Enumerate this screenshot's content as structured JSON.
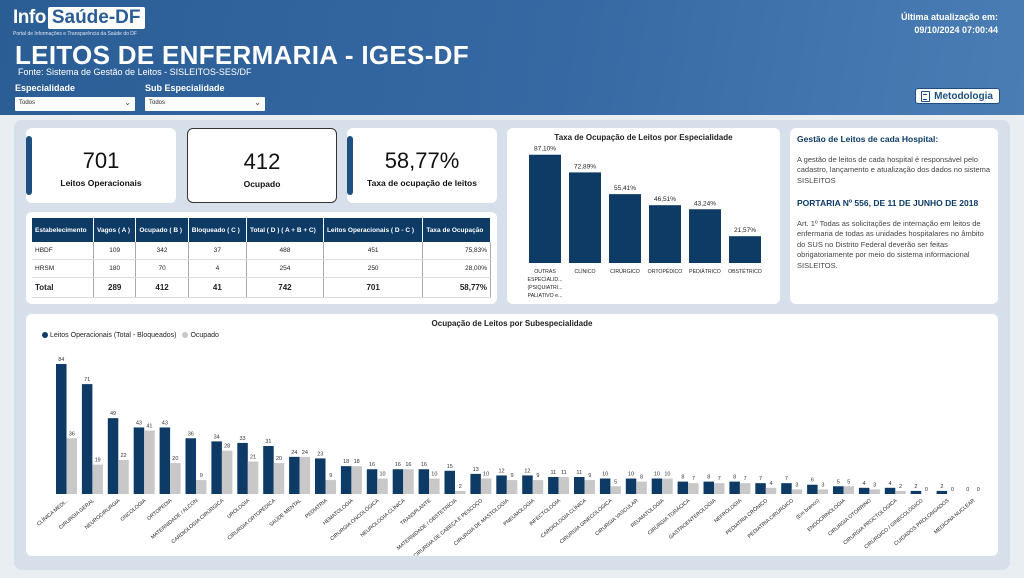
{
  "header": {
    "logo_info": "Info",
    "logo_saude": "Saúde-DF",
    "logo_sub": "Portal de Informações e Transparência da Saúde do DF",
    "title": "LEITOS DE ENFERMARIA - IGES-DF",
    "source": "Fonte: Sistema de Gestão de Leitos - SISLEITOS-SES/DF",
    "update_label": "Última atualização em:",
    "update_value": "09/10/2024 07:00:44",
    "metodologia": "Metodologia"
  },
  "filters": {
    "especialidade_label": "Especialidade",
    "especialidade_value": "Todos",
    "sub_label": "Sub Especialidade",
    "sub_value": "Todos"
  },
  "kpis": {
    "operacionais_value": "701",
    "operacionais_label": "Leitos Operacionais",
    "ocupado_value": "412",
    "ocupado_label": "Ocupado",
    "taxa_value": "58,77%",
    "taxa_label": "Taxa de ocupação de leitos"
  },
  "table": {
    "headers": [
      "Estabelecimento",
      "Vagos ( A )",
      "Ocupado ( B )",
      "Bloqueado ( C )",
      "Total ( D ) ( A + B + C)",
      "Leitos Operacionais ( D - C )",
      "Taxa de Ocupação"
    ],
    "rows": [
      [
        "HBDF",
        "109",
        "342",
        "37",
        "488",
        "451",
        "75,83%"
      ],
      [
        "HRSM",
        "180",
        "70",
        "4",
        "254",
        "250",
        "28,00%"
      ]
    ],
    "total": [
      "Total",
      "289",
      "412",
      "41",
      "742",
      "701",
      "58,77%"
    ]
  },
  "info": {
    "title": "Gestão de Leitos de cada Hospital:",
    "p1": "A gestão de leitos de cada hospital é responsável pelo cadastro, lançamento e atualização dos dados no sistema SISLEITOS",
    "portaria": "PORTARIA Nº 556, DE 11 DE JUNHO DE 2018",
    "p2": "Art. 1º Todas as solicitações de internação em leitos de enfermaria de todas as unidades hospitalares no âmbito do SUS no Distrito Federal deverão ser feitas obrigatoriamente por meio do sistema informacional SISLEITOS."
  },
  "colors": {
    "dark": "#0d3b66",
    "light": "#c8c8c8",
    "header": "#2b5d95"
  },
  "chart_data": [
    {
      "type": "bar",
      "title": "Taxa de Ocupação de Leitos por Especialidade",
      "categories": [
        "OUTRAS ESPECIALID... (PSIQUIATRI... PALIATIVO e...",
        "CLÍNICO",
        "CIRÚRGICO",
        "ORTOPÉDICO",
        "PEDIÁTRICO",
        "OBSTÉTRICO"
      ],
      "values": [
        87.1,
        72.89,
        55.41,
        46.51,
        43.24,
        21.57
      ],
      "labels": [
        "87,10%",
        "72,89%",
        "55,41%",
        "46,51%",
        "43,24%",
        "21,57%"
      ],
      "ylim": [
        0,
        100
      ],
      "grid": false
    },
    {
      "type": "bar",
      "title": "Ocupação de Leitos por Subespecialidade",
      "legend_position": "top-left",
      "series": [
        {
          "name": "Leitos Operacionais (Total - Bloqueados)",
          "values": [
            84,
            71,
            49,
            43,
            43,
            36,
            34,
            33,
            31,
            24,
            23,
            18,
            16,
            16,
            16,
            15,
            13,
            12,
            12,
            11,
            11,
            10,
            10,
            10,
            8,
            8,
            8,
            7,
            7,
            6,
            5,
            4,
            4,
            2,
            2,
            0
          ]
        },
        {
          "name": "Ocupado",
          "values": [
            36,
            19,
            22,
            41,
            20,
            9,
            28,
            21,
            20,
            24,
            9,
            18,
            10,
            16,
            10,
            2,
            10,
            9,
            9,
            11,
            9,
            5,
            8,
            10,
            7,
            7,
            7,
            4,
            3,
            3,
            5,
            3,
            2,
            0,
            0,
            0
          ]
        }
      ],
      "categories": [
        "CLÍNICA MEDI...",
        "CIRURGIA GERAL",
        "NEUROCIRURGIA",
        "ONCOLOGIA",
        "ORTOPEDIA",
        "MATERNIDADE / ALCON",
        "CARDIOLOGIA CIRÚRGICA",
        "UROLOGIA",
        "CIRURGIA ORTOPÉDICA",
        "SAÚDE MENTAL",
        "PEDIATRIA",
        "HEMATOLOGIA",
        "CIRURGIA ONCOLÓGICA",
        "NEUROLOGIA CLÍNICA",
        "TRANSPLANTE",
        "MATERNIDADE / OBSTETRÍCIA",
        "CIRURGIA DE CABEÇA E PESCOÇO",
        "CIRURGIA DE MASTOLOGIA",
        "PNEUMOLOGIA",
        "INFECTOLOGIA",
        "CARDIOLOGIA CLÍNICA",
        "CIRURGIA GINECOLÓGICA",
        "CIRURGIA VASCULAR",
        "REUMATOLOGIA",
        "CIRURGIA TORÁCICA",
        "GASTROENTEROLOGIA",
        "NEFROLOGIA",
        "PEDIATRIA CRÔNICO",
        "PEDIATRIA CIRÚRGICO",
        "(Em branco)",
        "ENDOCRINOLOGIA",
        "CIRURGIA OTORRINO",
        "CIRURGIA PROCTOLÓGICA",
        "CIRÚRGICO / GINECOLÓGICO",
        "CUIDADOS PROLONGADOS",
        "MEDICINA NUCLEAR"
      ],
      "ylim": [
        0,
        90
      ],
      "grid": false
    }
  ]
}
